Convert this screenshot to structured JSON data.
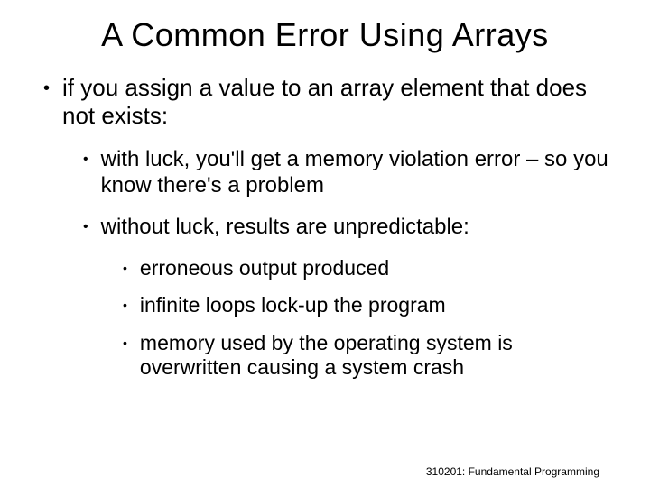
{
  "title": "A Common Error Using Arrays",
  "bullets": {
    "b1": "if you assign a value to an array element that does not exists:",
    "b2a": "with luck, you'll get a memory violation error – so you know there's a problem",
    "b2b": "without luck, results are unpredictable:",
    "b3a": "erroneous output produced",
    "b3b": "infinite loops lock-up the program",
    "b3c": "memory used by the operating system is overwritten causing a system crash"
  },
  "footer": "310201: Fundamental Programming",
  "style": {
    "background_color": "#ffffff",
    "text_color": "#000000",
    "font_family": "Comic Sans MS",
    "title_fontsize": 36,
    "lvl1_fontsize": 26,
    "lvl2_fontsize": 24,
    "lvl3_fontsize": 23,
    "footer_fontsize": 12,
    "bullet_glyph": "•"
  }
}
